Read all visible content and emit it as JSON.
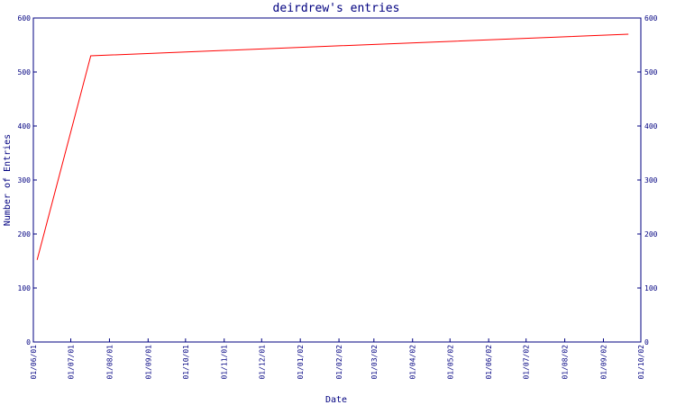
{
  "chart_data": {
    "type": "line",
    "title": "deirdrew's entries",
    "xlabel": "Date",
    "ylabel": "Number of Entries",
    "ylim": [
      0,
      600
    ],
    "yticks": [
      0,
      100,
      200,
      300,
      400,
      500,
      600
    ],
    "x_tick_labels": [
      "01/06/01",
      "01/07/01",
      "01/08/01",
      "01/09/01",
      "01/10/01",
      "01/11/01",
      "01/12/01",
      "01/01/02",
      "01/02/02",
      "01/03/02",
      "01/04/02",
      "01/05/02",
      "01/06/02",
      "01/07/02",
      "01/08/02",
      "01/09/02",
      "01/10/02"
    ],
    "grid": false,
    "series": [
      {
        "x": [
          "2001-06-04",
          "2001-07-17",
          "2002-09-21"
        ],
        "values": [
          152,
          530,
          570
        ]
      }
    ],
    "colors": {
      "line": "#ff0000",
      "axes": "#000080",
      "text": "#000080"
    }
  }
}
